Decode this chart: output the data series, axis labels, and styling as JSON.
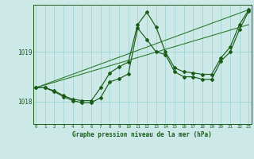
{
  "xlabel": "Graphe pression niveau de la mer (hPa)",
  "x_ticks": [
    0,
    1,
    2,
    3,
    4,
    5,
    6,
    7,
    8,
    9,
    10,
    11,
    12,
    13,
    14,
    15,
    16,
    17,
    18,
    19,
    20,
    21,
    22,
    23
  ],
  "ylim": [
    1017.55,
    1019.95
  ],
  "yticks": [
    1018,
    1019
  ],
  "bg_color": "#cce9e8",
  "grid_color": "#99cece",
  "line_color_dark": "#1a5c1a",
  "line_color_mid": "#2e7d2e",
  "series_high": {
    "x": [
      0,
      1,
      2,
      3,
      4,
      5,
      6,
      7,
      8,
      9,
      10,
      11,
      12,
      13,
      14,
      15,
      16,
      17,
      18,
      19,
      20,
      21,
      22,
      23
    ],
    "y": [
      1018.28,
      1018.28,
      1018.22,
      1018.12,
      1018.05,
      1018.02,
      1018.02,
      1018.28,
      1018.58,
      1018.7,
      1018.8,
      1019.55,
      1019.8,
      1019.5,
      1019.0,
      1018.68,
      1018.6,
      1018.58,
      1018.55,
      1018.55,
      1018.88,
      1019.1,
      1019.55,
      1019.85
    ]
  },
  "series_low": {
    "x": [
      0,
      1,
      2,
      3,
      4,
      5,
      6,
      7,
      8,
      9,
      10,
      11,
      12,
      13,
      14,
      15,
      16,
      17,
      18,
      19,
      20,
      21,
      22,
      23
    ],
    "y": [
      1018.28,
      1018.28,
      1018.2,
      1018.1,
      1018.02,
      1017.98,
      1017.98,
      1018.08,
      1018.4,
      1018.46,
      1018.56,
      1019.48,
      1019.25,
      1019.0,
      1018.95,
      1018.6,
      1018.5,
      1018.5,
      1018.45,
      1018.45,
      1018.82,
      1019.0,
      1019.45,
      1019.82
    ]
  },
  "trend1": {
    "x": [
      0,
      23
    ],
    "y": [
      1018.28,
      1019.85
    ]
  },
  "trend2": {
    "x": [
      0,
      23
    ],
    "y": [
      1018.28,
      1019.55
    ]
  }
}
